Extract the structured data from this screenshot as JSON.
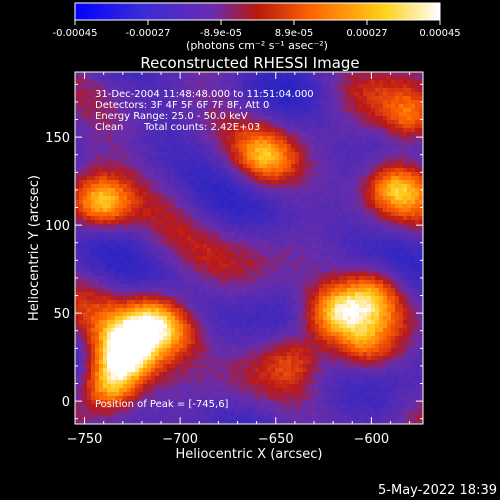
{
  "chart_data": {
    "type": "heatmap",
    "title": "Reconstructed RHESSI Image",
    "xlabel": "Heliocentric X (arcsec)",
    "ylabel": "Heliocentric Y (arcsec)",
    "xlim": [
      -755,
      -573
    ],
    "ylim": [
      -13,
      187
    ],
    "x_ticks": [
      -750,
      -700,
      -650,
      -600
    ],
    "y_ticks": [
      0,
      50,
      100,
      150
    ],
    "colorbar": {
      "ticks": [
        "-0.00045",
        "-0.00027",
        "-8.9e-05",
        "8.9e-05",
        "0.00027",
        "0.00045"
      ],
      "unit_label": "(photons cm⁻² s⁻¹ asec⁻²)",
      "range": [
        -0.00045,
        0.00045
      ],
      "colors": [
        "#0000ff",
        "#6a2bb0",
        "#b8180e",
        "#ff6600",
        "#ffd21a",
        "#ffffff"
      ]
    },
    "annotations": {
      "time": "31-Dec-2004 11:48:48.000 to 11:51:04.000",
      "detectors": "Detectors: 3F 4F 5F 6F 7F 8F, Att 0",
      "energy": "Energy Range: 25.0 - 50.0 keV",
      "clean": "Clean",
      "counts": "Total counts: 2.42E+03",
      "peak": "Position of Peak = [-745,6]"
    },
    "hot_spots": [
      {
        "x": -738,
        "y": 8,
        "level": 1.0
      },
      {
        "x": -728,
        "y": 28,
        "level": 0.9
      },
      {
        "x": -714,
        "y": 48,
        "level": 0.75
      },
      {
        "x": -742,
        "y": 112,
        "level": 0.85
      },
      {
        "x": -700,
        "y": 40,
        "level": 0.5
      },
      {
        "x": -620,
        "y": 50,
        "level": 0.7
      },
      {
        "x": -598,
        "y": 62,
        "level": 0.6
      },
      {
        "x": -578,
        "y": 160,
        "level": 0.75
      },
      {
        "x": -588,
        "y": 122,
        "level": 0.6
      },
      {
        "x": -656,
        "y": 138,
        "level": 0.55
      },
      {
        "x": -604,
        "y": 30,
        "level": 0.45
      },
      {
        "x": -640,
        "y": 25,
        "level": 0.4
      }
    ]
  },
  "footer": {
    "date": "5-May-2022 18:39"
  }
}
